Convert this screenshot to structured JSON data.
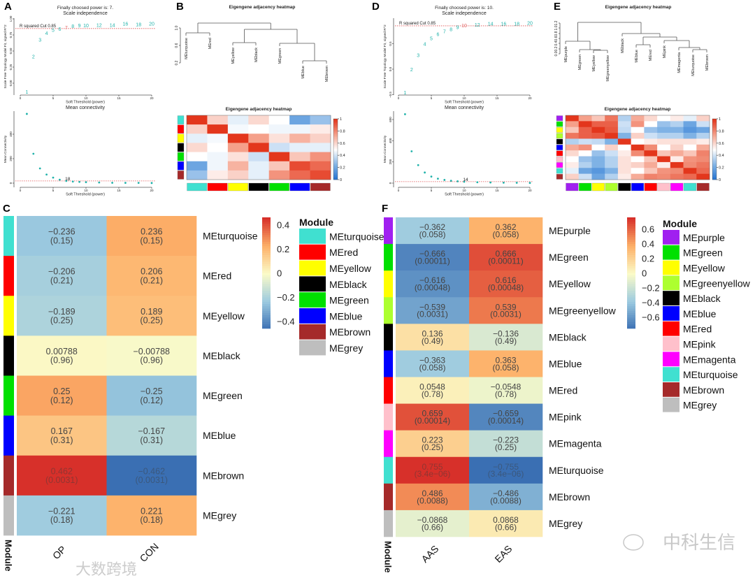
{
  "panels": {
    "A": "A",
    "B": "B",
    "C": "C",
    "D": "D",
    "E": "E",
    "F": "F"
  },
  "module_colors": {
    "turquoise": "#40e0d0",
    "red": "#ff0000",
    "yellow": "#ffff00",
    "black": "#000000",
    "green": "#00e000",
    "blue": "#0000ff",
    "brown": "#a52a2a",
    "grey": "#bebebe",
    "purple": "#a020f0",
    "greenyellow": "#adff2f",
    "pink": "#ffc0cb",
    "magenta": "#ff00ff"
  },
  "point_color": "#20b2aa",
  "highlight_color": "#e06060",
  "watermarks": [
    "大数跨境",
    "中科生信"
  ],
  "chart_data": [
    {
      "type": "scatter",
      "panel": "A",
      "title": "Finally choosed power is: 7.",
      "subtitle": "Scale independence",
      "xlabel": "Soft Threshold (power)",
      "ylabel": "Scale Free Topology Model Fit, signed R^2",
      "xlim": [
        0,
        20
      ],
      "ylim": [
        -0.15,
        1.0
      ],
      "xticks": [
        "0",
        "5",
        "10",
        "15",
        "20"
      ],
      "yticks": [
        "1.00",
        "0.75",
        "0.50",
        "0.25",
        "0.00"
      ],
      "cutoff": 0.85,
      "cutoff_label": "R squared Cut 0.85",
      "chosen": 7,
      "x": [
        1,
        2,
        3,
        4,
        5,
        6,
        7,
        8,
        9,
        10,
        12,
        14,
        16,
        18,
        20
      ],
      "y": [
        -0.13,
        0.42,
        0.68,
        0.78,
        0.83,
        0.85,
        0.87,
        0.89,
        0.9,
        0.9,
        0.91,
        0.91,
        0.93,
        0.92,
        0.93
      ]
    },
    {
      "type": "scatter",
      "panel": "A",
      "title": "Mean connectivity",
      "xlabel": "Soft Threshold (power)",
      "ylabel": "Mean Connectivity",
      "xlim": [
        0,
        20
      ],
      "ylim": [
        0,
        600
      ],
      "xticks": [
        "0",
        "5",
        "10",
        "15",
        "20"
      ],
      "yticks": [
        "0",
        "200",
        "400"
      ],
      "ref_line": 18,
      "ref_label": "18",
      "x": [
        1,
        2,
        3,
        4,
        5,
        6,
        7,
        8,
        9,
        10,
        12,
        14,
        16,
        18,
        20
      ],
      "y": [
        566,
        240,
        120,
        70,
        45,
        28,
        18,
        13,
        10,
        8,
        5,
        3,
        2,
        2,
        1
      ]
    },
    {
      "type": "dendrogram",
      "panel": "B",
      "title": "Eigengene adjacency heatmap",
      "yticks": [
        "1.0",
        "0.6",
        "0.2"
      ],
      "leaves": [
        "MEturquoise",
        "MEred",
        "MEyellow",
        "MEblack",
        "MEgreen",
        "MEblue",
        "MEbrown"
      ]
    },
    {
      "type": "heatmap",
      "panel": "B",
      "title": "Eigengene adjacency heatmap",
      "colorbar_ticks": [
        "1",
        "0.8",
        "0.6",
        "0.4",
        "0.2",
        "0"
      ],
      "modules": [
        "turquoise",
        "red",
        "yellow",
        "black",
        "green",
        "blue",
        "brown"
      ],
      "values": [
        [
          1,
          0.62,
          0.45,
          0.6,
          0.5,
          0.2,
          0.3
        ],
        [
          0.62,
          1,
          0.48,
          0.5,
          0.47,
          0.47,
          0.55
        ],
        [
          0.45,
          0.48,
          1,
          0.75,
          0.58,
          0.7,
          0.62
        ],
        [
          0.6,
          0.5,
          0.75,
          1,
          0.4,
          0.45,
          0.45
        ],
        [
          0.5,
          0.47,
          0.58,
          0.4,
          1,
          0.65,
          0.78
        ],
        [
          0.2,
          0.47,
          0.7,
          0.45,
          0.65,
          0.95,
          0.88
        ],
        [
          0.3,
          0.55,
          0.62,
          0.45,
          0.78,
          0.88,
          0.95
        ]
      ]
    },
    {
      "type": "heatmap",
      "panel": "C",
      "legend_title": "Module",
      "columns": [
        "OP",
        "CON"
      ],
      "row_axis_label": "Module",
      "colorbar_ticks": [
        "0.4",
        "0.2",
        "0",
        "−0.2",
        "−0.4"
      ],
      "range": [
        -0.462,
        0.462
      ],
      "rows": [
        {
          "module": "turquoise",
          "label": "MEturquoise",
          "values": [
            "−0.236",
            "0.236"
          ],
          "p": [
            "(0.15)",
            "(0.15)"
          ],
          "r": [
            -0.236,
            0.236
          ]
        },
        {
          "module": "red",
          "label": "MEred",
          "values": [
            "−0.206",
            "0.206"
          ],
          "p": [
            "(0.21)",
            "(0.21)"
          ],
          "r": [
            -0.206,
            0.206
          ]
        },
        {
          "module": "yellow",
          "label": "MEyellow",
          "values": [
            "−0.189",
            "0.189"
          ],
          "p": [
            "(0.25)",
            "(0.25)"
          ],
          "r": [
            -0.189,
            0.189
          ]
        },
        {
          "module": "black",
          "label": "MEblack",
          "values": [
            "0.00788",
            "−0.00788"
          ],
          "p": [
            "(0.96)",
            "(0.96)"
          ],
          "r": [
            0.00788,
            -0.00788
          ]
        },
        {
          "module": "green",
          "label": "MEgreen",
          "values": [
            "0.25",
            "−0.25"
          ],
          "p": [
            "(0.12)",
            "(0.12)"
          ],
          "r": [
            0.25,
            -0.25
          ]
        },
        {
          "module": "blue",
          "label": "MEblue",
          "values": [
            "0.167",
            "−0.167"
          ],
          "p": [
            "(0.31)",
            "(0.31)"
          ],
          "r": [
            0.167,
            -0.167
          ]
        },
        {
          "module": "brown",
          "label": "MEbrown",
          "values": [
            "0.462",
            "−0.462"
          ],
          "p": [
            "(0.0031)",
            "(0.0031)"
          ],
          "r": [
            0.462,
            -0.462
          ]
        },
        {
          "module": "grey",
          "label": "MEgrey",
          "values": [
            "−0.221",
            "0.221"
          ],
          "p": [
            "(0.18)",
            "(0.18)"
          ],
          "r": [
            -0.221,
            0.221
          ]
        }
      ],
      "legend": [
        "MEturquoise",
        "MEred",
        "MEyellow",
        "MEblack",
        "MEgreen",
        "MEblue",
        "MEbrown",
        "MEgrey"
      ],
      "legend_modules": [
        "turquoise",
        "red",
        "yellow",
        "black",
        "green",
        "blue",
        "brown",
        "grey"
      ]
    },
    {
      "type": "scatter",
      "panel": "D",
      "title": "Finally choosed power is: 10.",
      "subtitle": "Scale independence",
      "xlabel": "Soft Threshold (power)",
      "ylabel": "Scale Free Topology Model Fit, signed R^2",
      "xlim": [
        0,
        20
      ],
      "ylim": [
        -0.55,
        1.0
      ],
      "xticks": [
        "0",
        "5",
        "10",
        "15",
        "20"
      ],
      "yticks": [
        "0.5",
        "0.0",
        "−0.5"
      ],
      "cutoff": 0.85,
      "cutoff_label": "R squared Cut 0.85",
      "chosen": 10,
      "x": [
        1,
        2,
        3,
        4,
        5,
        6,
        7,
        8,
        9,
        10,
        12,
        14,
        16,
        18,
        20
      ],
      "y": [
        -0.45,
        0.0,
        0.28,
        0.5,
        0.61,
        0.69,
        0.75,
        0.79,
        0.83,
        0.86,
        0.88,
        0.9,
        0.9,
        0.9,
        0.91
      ]
    },
    {
      "type": "scatter",
      "panel": "D",
      "title": "Mean connectivity",
      "xlabel": "Soft Threshold (power)",
      "ylabel": "Mean Connectivity",
      "xlim": [
        0,
        20
      ],
      "ylim": [
        0,
        700
      ],
      "xticks": [
        "0",
        "5",
        "10",
        "15",
        "20"
      ],
      "yticks": [
        "0",
        "200",
        "400",
        "600"
      ],
      "ref_line": 14,
      "ref_label": "14",
      "x": [
        1,
        2,
        3,
        4,
        5,
        6,
        7,
        8,
        9,
        10,
        12,
        14,
        16,
        18,
        20
      ],
      "y": [
        650,
        300,
        170,
        100,
        62,
        42,
        30,
        22,
        17,
        13,
        8,
        6,
        4,
        3,
        2
      ]
    },
    {
      "type": "dendrogram",
      "panel": "E",
      "title": "Eigengene adjacency heatmap",
      "yticks": [
        "1.2",
        "1.0",
        "0.8",
        "0.6",
        "0.4",
        "0.2",
        "0.0"
      ],
      "leaves": [
        "MEpurple",
        "MEgreen",
        "MEyellow",
        "MEgreenyellow",
        "MEblack",
        "MEblue",
        "MEred",
        "MEpink",
        "MEmagenta",
        "MEturquoise",
        "MEbrown"
      ]
    },
    {
      "type": "heatmap",
      "panel": "E",
      "title": "Eigengene adjacency heatmap",
      "colorbar_ticks": [
        "1",
        "0.8",
        "0.6",
        "0.4",
        "0.2",
        "0"
      ],
      "modules": [
        "purple",
        "green",
        "yellow",
        "greenyellow",
        "black",
        "blue",
        "red",
        "pink",
        "magenta",
        "turquoise",
        "brown"
      ],
      "values": [
        [
          1,
          0.75,
          0.65,
          0.85,
          0.35,
          0.72,
          0.6,
          0.5,
          0.55,
          0.45,
          0.62
        ],
        [
          0.75,
          1,
          0.9,
          0.9,
          0.4,
          0.78,
          0.5,
          0.3,
          0.35,
          0.2,
          0.4
        ],
        [
          0.65,
          0.9,
          1,
          0.92,
          0.38,
          0.5,
          0.3,
          0.25,
          0.25,
          0.15,
          0.2
        ],
        [
          0.85,
          0.9,
          0.92,
          1,
          0.25,
          0.62,
          0.4,
          0.35,
          0.35,
          0.25,
          0.35
        ],
        [
          0.35,
          0.4,
          0.38,
          0.25,
          1,
          0.5,
          0.55,
          0.58,
          0.58,
          0.58,
          0.55
        ],
        [
          0.72,
          0.78,
          0.5,
          0.62,
          0.5,
          1,
          0.8,
          0.5,
          0.62,
          0.5,
          0.72
        ],
        [
          0.6,
          0.5,
          0.3,
          0.4,
          0.55,
          0.8,
          1,
          0.65,
          0.72,
          0.65,
          0.82
        ],
        [
          0.5,
          0.3,
          0.25,
          0.35,
          0.58,
          0.5,
          0.65,
          1,
          0.55,
          0.78,
          0.8
        ],
        [
          0.55,
          0.35,
          0.25,
          0.35,
          0.58,
          0.62,
          0.72,
          0.55,
          1,
          0.8,
          0.85
        ],
        [
          0.45,
          0.2,
          0.15,
          0.25,
          0.58,
          0.5,
          0.65,
          0.78,
          0.8,
          1,
          0.88
        ],
        [
          0.62,
          0.4,
          0.2,
          0.35,
          0.55,
          0.72,
          0.82,
          0.8,
          0.85,
          0.88,
          1
        ]
      ]
    },
    {
      "type": "heatmap",
      "panel": "F",
      "legend_title": "Module",
      "columns": [
        "AAS",
        "EAS"
      ],
      "row_axis_label": "Module",
      "colorbar_ticks": [
        "0.6",
        "0.4",
        "0.2",
        "0",
        "−0.2",
        "−0.4",
        "−0.6"
      ],
      "range": [
        -0.755,
        0.755
      ],
      "rows": [
        {
          "module": "purple",
          "label": "MEpurple",
          "values": [
            "−0.362",
            "0.362"
          ],
          "p": [
            "(0.058)",
            "(0.058)"
          ],
          "r": [
            -0.362,
            0.362
          ]
        },
        {
          "module": "green",
          "label": "MEgreen",
          "values": [
            "−0.666",
            "0.666"
          ],
          "p": [
            "(0.00011)",
            "(0.00011)"
          ],
          "r": [
            -0.666,
            0.666
          ]
        },
        {
          "module": "yellow",
          "label": "MEyellow",
          "values": [
            "−0.616",
            "0.616"
          ],
          "p": [
            "(0.00048)",
            "(0.00048)"
          ],
          "r": [
            -0.616,
            0.616
          ]
        },
        {
          "module": "greenyellow",
          "label": "MEgreenyellow",
          "values": [
            "−0.539",
            "0.539"
          ],
          "p": [
            "(0.0031)",
            "(0.0031)"
          ],
          "r": [
            -0.539,
            0.539
          ]
        },
        {
          "module": "black",
          "label": "MEblack",
          "values": [
            "0.136",
            "−0.136"
          ],
          "p": [
            "(0.49)",
            "(0.49)"
          ],
          "r": [
            0.136,
            -0.136
          ]
        },
        {
          "module": "blue",
          "label": "MEblue",
          "values": [
            "−0.363",
            "0.363"
          ],
          "p": [
            "(0.058)",
            "(0.058)"
          ],
          "r": [
            -0.363,
            0.363
          ]
        },
        {
          "module": "red",
          "label": "MEred",
          "values": [
            "0.0548",
            "−0.0548"
          ],
          "p": [
            "(0.78)",
            "(0.78)"
          ],
          "r": [
            0.0548,
            -0.0548
          ]
        },
        {
          "module": "pink",
          "label": "MEpink",
          "values": [
            "0.659",
            "−0.659"
          ],
          "p": [
            "(0.00014)",
            "(0.00014)"
          ],
          "r": [
            0.659,
            -0.659
          ]
        },
        {
          "module": "magenta",
          "label": "MEmagenta",
          "values": [
            "0.223",
            "−0.223"
          ],
          "p": [
            "(0.25)",
            "(0.25)"
          ],
          "r": [
            0.223,
            -0.223
          ]
        },
        {
          "module": "turquoise",
          "label": "MEturquoise",
          "values": [
            "0.755",
            "−0.755"
          ],
          "p": [
            "(3.4e−06)",
            "(3.4e−06)"
          ],
          "r": [
            0.755,
            -0.755
          ]
        },
        {
          "module": "brown",
          "label": "MEbrown",
          "values": [
            "0.486",
            "−0.486"
          ],
          "p": [
            "(0.0088)",
            "(0.0088)"
          ],
          "r": [
            0.486,
            -0.486
          ]
        },
        {
          "module": "grey",
          "label": "MEgrey",
          "values": [
            "−0.0868",
            "0.0868"
          ],
          "p": [
            "(0.66)",
            "(0.66)"
          ],
          "r": [
            -0.0868,
            0.0868
          ]
        }
      ],
      "legend": [
        "MEpurple",
        "MEgreen",
        "MEyellow",
        "MEgreenyellow",
        "MEblack",
        "MEblue",
        "MEred",
        "MEpink",
        "MEmagenta",
        "MEturquoise",
        "MEbrown",
        "MEgrey"
      ],
      "legend_modules": [
        "purple",
        "green",
        "yellow",
        "greenyellow",
        "black",
        "blue",
        "red",
        "pink",
        "magenta",
        "turquoise",
        "brown",
        "grey"
      ]
    }
  ]
}
